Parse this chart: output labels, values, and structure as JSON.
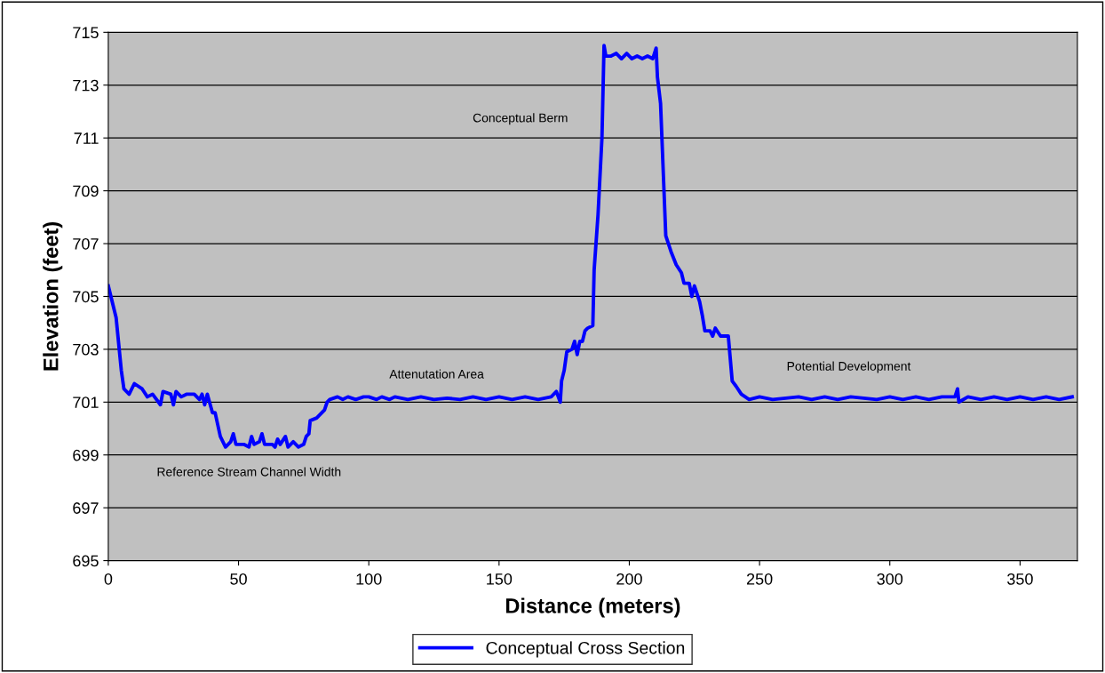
{
  "chart_data": {
    "type": "line",
    "xlabel": "Distance (meters)",
    "ylabel": "Elevation (feet)",
    "xlim": [
      0,
      372
    ],
    "xticks": [
      0,
      50,
      100,
      150,
      200,
      250,
      300,
      350
    ],
    "ylim": [
      695,
      715
    ],
    "yticks": [
      695,
      697,
      699,
      701,
      703,
      705,
      707,
      709,
      711,
      713,
      715
    ],
    "grid": "y",
    "legend": "bottom",
    "marker": "none",
    "line_style": "solid",
    "annotations": [
      "Reference Stream Channel Width",
      "Attenutation Area",
      "Conceptual Berm",
      "Potential Development"
    ],
    "series": [
      {
        "name": "Conceptual Cross Section",
        "color": "#0000ff",
        "x": [
          0,
          3,
          5,
          6,
          8,
          10,
          13,
          15,
          17,
          20,
          21,
          24,
          25,
          26,
          28,
          30,
          33,
          35,
          36,
          37,
          38,
          40,
          41,
          43,
          45,
          47,
          48,
          49,
          52,
          54,
          55,
          56,
          58,
          59,
          60,
          63,
          64,
          65,
          66,
          68,
          69,
          71,
          73,
          75,
          76,
          77,
          77.5,
          80,
          82,
          83,
          84,
          85,
          88,
          90,
          92,
          95,
          98,
          100,
          103,
          105,
          108,
          110,
          115,
          120,
          125,
          130,
          135,
          140,
          145,
          150,
          155,
          160,
          165,
          170,
          172,
          173.5,
          174,
          175,
          176,
          178,
          179,
          180,
          181,
          182,
          183,
          184,
          186,
          186.5,
          188,
          189.5,
          190.3,
          191,
          193,
          195,
          197,
          199,
          201,
          203,
          205,
          207,
          209,
          210.3,
          210.8,
          212,
          214,
          216,
          218,
          220,
          221,
          223,
          224,
          225,
          227,
          228,
          229,
          231,
          232,
          233,
          235,
          237,
          238,
          239.5,
          241,
          243,
          246,
          250,
          255,
          260,
          265,
          270,
          275,
          280,
          285,
          290,
          295,
          300,
          305,
          310,
          315,
          320,
          325,
          326,
          326.5,
          330,
          335,
          340,
          345,
          350,
          355,
          360,
          365,
          370
        ],
        "values": [
          705.4,
          704.2,
          702.2,
          701.5,
          701.3,
          701.7,
          701.5,
          701.2,
          701.3,
          700.9,
          701.4,
          701.3,
          700.9,
          701.4,
          701.2,
          701.3,
          701.3,
          701.1,
          701.3,
          700.9,
          701.3,
          700.6,
          700.6,
          699.7,
          699.3,
          699.5,
          699.8,
          699.4,
          699.4,
          699.3,
          699.7,
          699.4,
          699.5,
          699.8,
          699.4,
          699.4,
          699.3,
          699.6,
          699.4,
          699.7,
          699.3,
          699.5,
          699.3,
          699.4,
          699.7,
          699.8,
          700.3,
          700.4,
          700.6,
          700.7,
          701.0,
          701.1,
          701.2,
          701.1,
          701.2,
          701.1,
          701.2,
          701.2,
          701.1,
          701.2,
          701.1,
          701.2,
          701.1,
          701.2,
          701.1,
          701.15,
          701.1,
          701.2,
          701.1,
          701.2,
          701.1,
          701.2,
          701.1,
          701.2,
          701.4,
          701.0,
          701.8,
          702.2,
          702.9,
          703.0,
          703.3,
          702.8,
          703.3,
          703.3,
          703.7,
          703.8,
          703.9,
          706.0,
          708.1,
          711.0,
          714.5,
          714.1,
          714.1,
          714.2,
          714.0,
          714.2,
          714.0,
          714.1,
          714.0,
          714.1,
          714.0,
          714.4,
          713.3,
          712.3,
          707.3,
          706.7,
          706.2,
          705.9,
          705.5,
          705.5,
          705.0,
          705.4,
          704.8,
          704.3,
          703.7,
          703.7,
          703.5,
          703.8,
          703.5,
          703.5,
          703.5,
          701.8,
          701.6,
          701.3,
          701.1,
          701.2,
          701.1,
          701.15,
          701.2,
          701.1,
          701.2,
          701.1,
          701.2,
          701.15,
          701.1,
          701.2,
          701.1,
          701.2,
          701.1,
          701.2,
          701.2,
          701.5,
          701.0,
          701.2,
          701.1,
          701.2,
          701.1,
          701.2,
          701.1,
          701.2,
          701.1,
          701.2
        ]
      }
    ]
  }
}
